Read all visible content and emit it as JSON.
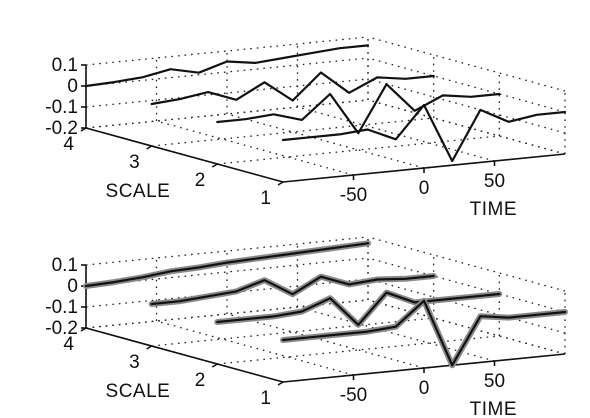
{
  "chart_data": [
    {
      "type": "line",
      "panel": "top",
      "title": "",
      "xlabel": "TIME",
      "ylabel": "SCALE",
      "zlabel": "",
      "x_ticks": [
        "-50",
        "0",
        "50"
      ],
      "y_ticks": [
        "1",
        "2",
        "3",
        "4"
      ],
      "z_ticks": [
        "0.1",
        "0",
        "-0.1",
        "-0.2"
      ],
      "xlim": [
        -100,
        100
      ],
      "ylim": [
        1,
        4
      ],
      "zlim": [
        -0.2,
        0.1
      ],
      "grid": true,
      "style": "single thin dark traces",
      "series": [
        {
          "scale": 4,
          "x": [
            -100,
            -80,
            -60,
            -40,
            -20,
            0,
            20,
            40,
            60,
            80,
            100
          ],
          "values": [
            0.0,
            0.005,
            0.015,
            0.04,
            0.01,
            0.05,
            0.03,
            0.04,
            0.05,
            0.06,
            0.06
          ]
        },
        {
          "scale": 3,
          "x": [
            -100,
            -80,
            -60,
            -40,
            -20,
            0,
            20,
            40,
            60,
            80,
            100
          ],
          "values": [
            0.0,
            0.01,
            0.03,
            -0.02,
            0.05,
            -0.05,
            0.07,
            -0.04,
            0.02,
            0.0,
            0.0
          ]
        },
        {
          "scale": 2,
          "x": [
            -100,
            -80,
            -60,
            -40,
            -20,
            0,
            20,
            40,
            60,
            80,
            100
          ],
          "values": [
            0.0,
            0.0,
            0.01,
            -0.03,
            0.08,
            -0.12,
            0.1,
            -0.04,
            0.02,
            0.0,
            0.0
          ]
        },
        {
          "scale": 1,
          "x": [
            -100,
            -80,
            -60,
            -40,
            -20,
            0,
            20,
            40,
            60,
            80,
            100
          ],
          "values": [
            0.0,
            0.0,
            0.0,
            0.01,
            -0.05,
            0.1,
            -0.18,
            0.05,
            -0.02,
            0.0,
            0.0
          ]
        }
      ]
    },
    {
      "type": "line",
      "panel": "bottom",
      "title": "",
      "xlabel": "TIME",
      "ylabel": "SCALE",
      "zlabel": "",
      "x_ticks": [
        "-50",
        "0",
        "50"
      ],
      "y_ticks": [
        "1",
        "2",
        "3",
        "4"
      ],
      "z_ticks": [
        "0.1",
        "0",
        "-0.1",
        "-0.2"
      ],
      "xlim": [
        -100,
        100
      ],
      "ylim": [
        1,
        4
      ],
      "zlim": [
        -0.2,
        0.1
      ],
      "grid": true,
      "style": "overlaid traces with grey halo",
      "series": [
        {
          "scale": 4,
          "x": [
            -100,
            -80,
            -60,
            -40,
            -20,
            0,
            20,
            40,
            60,
            80,
            100
          ],
          "values": [
            0.0,
            0.005,
            0.015,
            0.03,
            0.035,
            0.045,
            0.05,
            0.055,
            0.06,
            0.065,
            0.07
          ]
        },
        {
          "scale": 3,
          "x": [
            -100,
            -80,
            -60,
            -40,
            -20,
            0,
            20,
            40,
            60,
            80,
            100
          ],
          "values": [
            0.0,
            0.0,
            0.01,
            0.02,
            0.06,
            -0.02,
            0.05,
            0.0,
            0.01,
            0.0,
            0.0
          ]
        },
        {
          "scale": 2,
          "x": [
            -100,
            -80,
            -60,
            -40,
            -20,
            0,
            20,
            40,
            60,
            80,
            100
          ],
          "values": [
            0.0,
            0.0,
            0.0,
            0.01,
            0.06,
            -0.08,
            0.06,
            0.0,
            0.0,
            0.0,
            0.0
          ]
        },
        {
          "scale": 1,
          "x": [
            -100,
            -80,
            -60,
            -40,
            -20,
            0,
            20,
            40,
            60,
            80,
            100
          ],
          "values": [
            0.0,
            0.0,
            0.0,
            0.0,
            0.01,
            0.12,
            -0.2,
            0.02,
            0.0,
            0.0,
            0.0
          ]
        }
      ]
    }
  ]
}
